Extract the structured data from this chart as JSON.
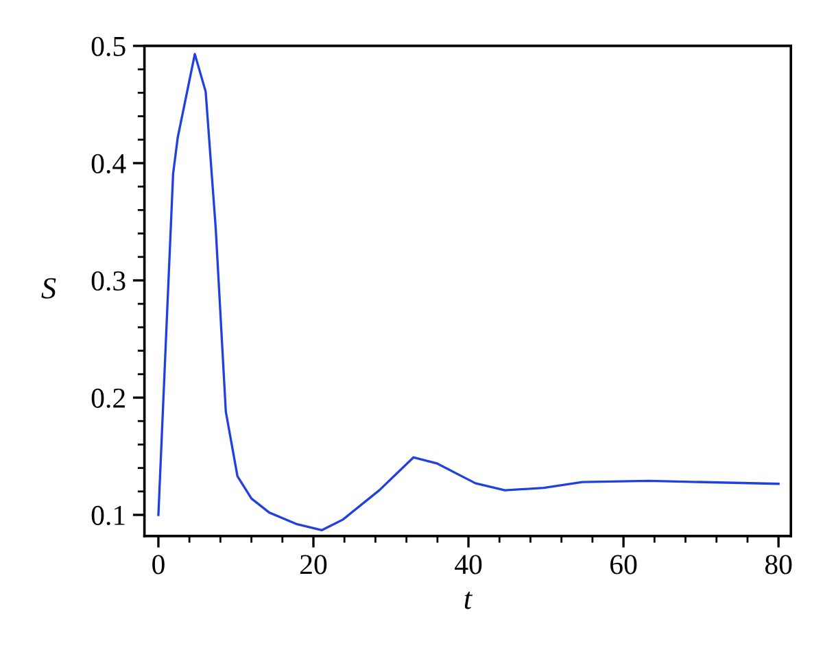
{
  "chart_data": {
    "type": "line",
    "xlabel": "t",
    "ylabel": "S",
    "x": [
      0,
      1.9,
      2.5,
      4.7,
      6.1,
      7.4,
      8.7,
      10.2,
      12.0,
      14.3,
      17.9,
      21.1,
      23.8,
      28.5,
      32.9,
      35.9,
      40.9,
      44.7,
      49.7,
      54.7,
      63.3,
      80
    ],
    "series": [
      {
        "color": "#2040e0",
        "values": [
          0.1,
          0.391,
          0.422,
          0.493,
          0.461,
          0.344,
          0.188,
          0.133,
          0.114,
          0.102,
          0.092,
          0.087,
          0.096,
          0.121,
          0.149,
          0.144,
          0.127,
          0.121,
          0.123,
          0.128,
          0.129,
          0.1265
        ]
      }
    ],
    "xlim": [
      -1.8,
      81.6
    ],
    "ylim": [
      0.082,
      0.5
    ],
    "xticks": [
      0,
      {
        "value": 4,
        "label": null
      },
      {
        "value": 8,
        "label": null
      },
      {
        "value": 12,
        "label": null
      },
      {
        "value": 16,
        "label": null
      },
      20,
      {
        "value": 24,
        "label": null
      },
      {
        "value": 28,
        "label": null
      },
      {
        "value": 32,
        "label": null
      },
      {
        "value": 36,
        "label": null
      },
      40,
      {
        "value": 44,
        "label": null
      },
      {
        "value": 48,
        "label": null
      },
      {
        "value": 52,
        "label": null
      },
      {
        "value": 56,
        "label": null
      },
      60,
      {
        "value": 64,
        "label": null
      },
      {
        "value": 68,
        "label": null
      },
      {
        "value": 72,
        "label": null
      },
      {
        "value": 76,
        "label": null
      },
      80
    ],
    "yticks": [
      0.1,
      {
        "value": 0.12,
        "label": null
      },
      {
        "value": 0.14,
        "label": null
      },
      {
        "value": 0.16,
        "label": null
      },
      {
        "value": 0.18,
        "label": null
      },
      0.2,
      {
        "value": 0.22,
        "label": null
      },
      {
        "value": 0.24,
        "label": null
      },
      {
        "value": 0.26,
        "label": null
      },
      {
        "value": 0.28,
        "label": null
      },
      0.3,
      {
        "value": 0.32,
        "label": null
      },
      {
        "value": 0.34,
        "label": null
      },
      {
        "value": 0.36,
        "label": null
      },
      {
        "value": 0.38,
        "label": null
      },
      0.4,
      {
        "value": 0.42,
        "label": null
      },
      {
        "value": 0.44,
        "label": null
      },
      {
        "value": 0.46,
        "label": null
      },
      {
        "value": 0.48,
        "label": null
      },
      0.5
    ],
    "grid": false,
    "legend": false,
    "marker": "none",
    "line_style": "solid"
  }
}
